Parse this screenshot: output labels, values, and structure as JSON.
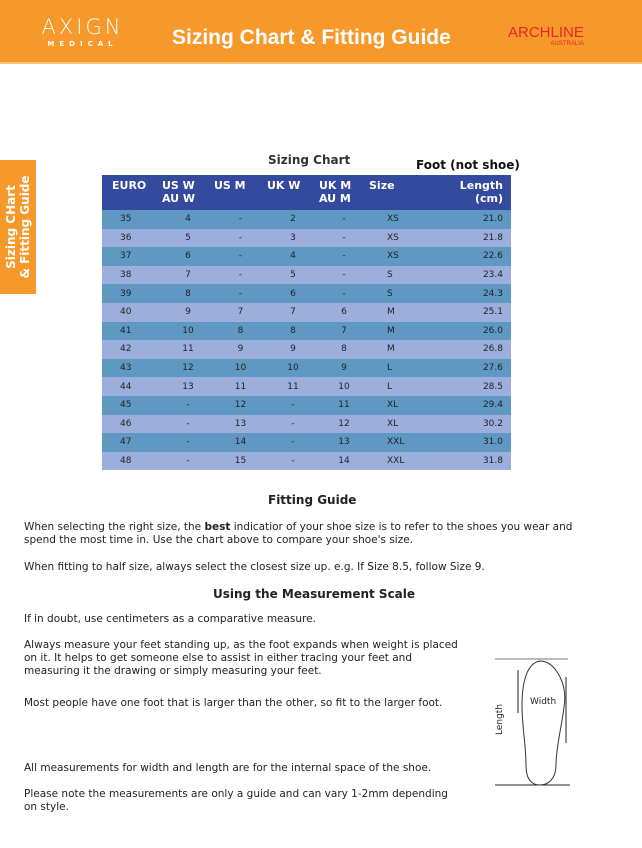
{
  "header": {
    "brand_left": "AXIGN",
    "brand_left_sub": "MEDICAL",
    "title": "Sizing Chart & Fitting Guide",
    "brand_right": "ARCHLINE",
    "brand_right_sub": "AUSTRALIA",
    "color": "#f7982a"
  },
  "side_tab": {
    "line1": "Sizing CHart",
    "line2": "& Fitting Guide"
  },
  "sizing_chart": {
    "title": "Sizing Chart",
    "note": "Foot (not shoe)",
    "columns": [
      [
        "EURO",
        ""
      ],
      [
        "US W",
        "AU W"
      ],
      [
        "US M",
        ""
      ],
      [
        "UK W",
        ""
      ],
      [
        "UK M",
        "AU M"
      ],
      [
        "Size",
        ""
      ],
      [
        "Length",
        "(cm)"
      ]
    ],
    "rows": [
      [
        "35",
        "4",
        "-",
        "2",
        "-",
        "XS",
        "21.0"
      ],
      [
        "36",
        "5",
        "-",
        "3",
        "-",
        "XS",
        "21.8"
      ],
      [
        "37",
        "6",
        "-",
        "4",
        "-",
        "XS",
        "22.6"
      ],
      [
        "38",
        "7",
        "-",
        "5",
        "-",
        "S",
        "23.4"
      ],
      [
        "39",
        "8",
        "-",
        "6",
        "-",
        "S",
        "24.3"
      ],
      [
        "40",
        "9",
        "7",
        "7",
        "6",
        "M",
        "25.1"
      ],
      [
        "41",
        "10",
        "8",
        "8",
        "7",
        "M",
        "26.0"
      ],
      [
        "42",
        "11",
        "9",
        "9",
        "8",
        "M",
        "26.8"
      ],
      [
        "43",
        "12",
        "10",
        "10",
        "9",
        "L",
        "27.6"
      ],
      [
        "44",
        "13",
        "11",
        "11",
        "10",
        "L",
        "28.5"
      ],
      [
        "45",
        "-",
        "12",
        "-",
        "11",
        "XL",
        "29.4"
      ],
      [
        "46",
        "-",
        "13",
        "-",
        "12",
        "XL",
        "30.2"
      ],
      [
        "47",
        "-",
        "14",
        "-",
        "13",
        "XXL",
        "31.0"
      ],
      [
        "48",
        "-",
        "15",
        "-",
        "14",
        "XXL",
        "31.8"
      ]
    ],
    "header_color": "#334a9e",
    "row_dark": "#5f99c3",
    "row_light": "#9caedb"
  },
  "fitting_guide": {
    "title": "Fitting Guide",
    "p1_pre": "When selecting the right size, the ",
    "p1_bold": "best",
    "p1_post": " indicatior of your shoe size is to refer to the shoes you wear and spend the most time in. Use the chart above to compare your shoe's size.",
    "p2": "When fitting to half size, always select the closest size up. e.g. If Size 8.5, follow Size 9."
  },
  "measurement": {
    "title": "Using the Measurement Scale",
    "p1": "If in doubt, use centimeters as a comparative measure.",
    "p2": "Always measure your feet standing up, as the foot expands when weight is placed on it. It helps to get someone else to assist in either tracing your feet and measuring it the drawing or simply measuring your feet.",
    "p3": "Most people have one foot that is larger than the other, so fit to the larger foot.",
    "p4": "All measurements for width and length are for the internal space of the shoe.",
    "p5": "Please note the measurements are only a guide and can vary 1-2mm depending on style.",
    "diagram_length": "Length",
    "diagram_width": "Width"
  }
}
